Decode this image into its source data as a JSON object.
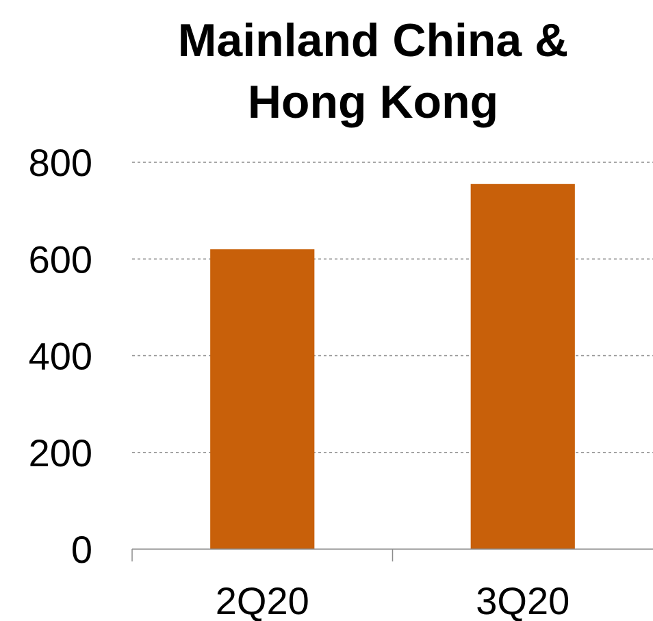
{
  "chart_data": {
    "type": "bar",
    "title_lines": [
      "Mainland China &",
      "Hong Kong"
    ],
    "categories": [
      "2Q20",
      "3Q20"
    ],
    "values": [
      620,
      755
    ],
    "ylim": [
      0,
      800
    ],
    "yticks": [
      0,
      200,
      400,
      600,
      800
    ],
    "xlabel": "",
    "ylabel": "",
    "grid": true,
    "bar_color": "#C8600A",
    "grid_color": "#8C8C8C"
  }
}
